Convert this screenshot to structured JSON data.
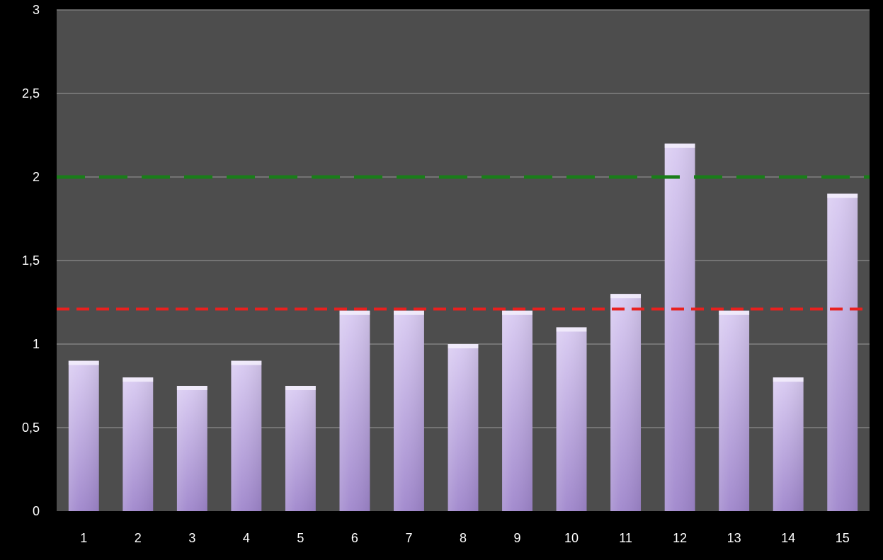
{
  "chart_data": {
    "type": "bar",
    "title": "",
    "xlabel": "",
    "ylabel": "",
    "categories": [
      "1",
      "2",
      "3",
      "4",
      "5",
      "6",
      "7",
      "8",
      "9",
      "10",
      "11",
      "12",
      "13",
      "14",
      "15"
    ],
    "values": [
      0.9,
      0.8,
      0.75,
      0.9,
      0.75,
      1.2,
      1.2,
      1.0,
      1.2,
      1.1,
      1.3,
      2.2,
      1.2,
      0.8,
      1.9
    ],
    "ylim": [
      0,
      3
    ],
    "yticks": [
      0,
      0.5,
      1,
      1.5,
      2,
      2.5,
      3
    ],
    "ytick_labels": [
      "0",
      "0,5",
      "1",
      "1,5",
      "2",
      "2,5",
      "3"
    ],
    "grid": true,
    "reference_lines": [
      {
        "value": 2.0,
        "color": "#1a7d1a",
        "style": "long-dash"
      },
      {
        "value": 1.21,
        "color": "#e8211f",
        "style": "short-dash"
      }
    ],
    "colors": {
      "background": "#000000",
      "plot_area": "#4d4d4d",
      "gridline": "#8c8c8c",
      "bar_top": "#d9cbf2",
      "bar_bottom": "#9f86cc"
    }
  }
}
